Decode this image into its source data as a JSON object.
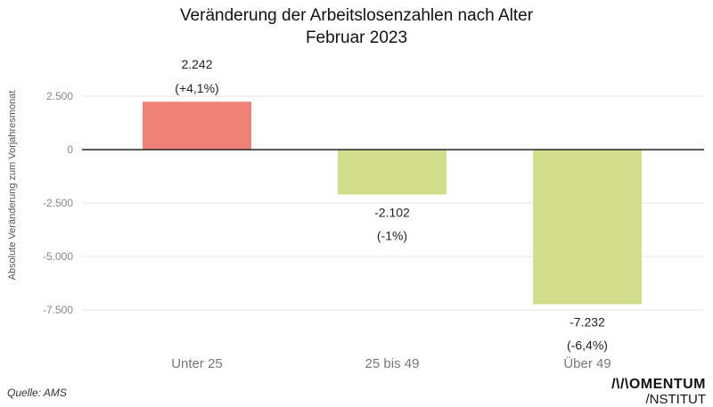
{
  "chart_data": {
    "type": "bar",
    "title": "Veränderung der Arbeitslosenzahlen nach Alter",
    "subtitle": "Februar 2023",
    "ylabel": "Absolute Veränderung zum Vorjahresmonat",
    "xlabel": "",
    "categories": [
      "Unter 25",
      "25 bis 49",
      "Über 49"
    ],
    "values": [
      2242,
      -2102,
      -7232
    ],
    "value_labels": [
      "2.242",
      "-2.102",
      "-7.232"
    ],
    "pct_labels": [
      "(+4,1%)",
      "(-1%)",
      "(-6,4%)"
    ],
    "colors": [
      "#EF8176",
      "#D2DE8C",
      "#D2DE8C"
    ],
    "ylim": [
      -8000,
      3500
    ],
    "yticks": [
      2500,
      0,
      -2500,
      -5000,
      -7500
    ],
    "ytick_labels": [
      "2.500",
      "0",
      "-2.500",
      "-5.000",
      "-7.500"
    ],
    "grid": true
  },
  "source": "Quelle: AMS",
  "logo": {
    "line1": "/\\/\\OMENTUM",
    "line2": "/NSTITUT"
  }
}
